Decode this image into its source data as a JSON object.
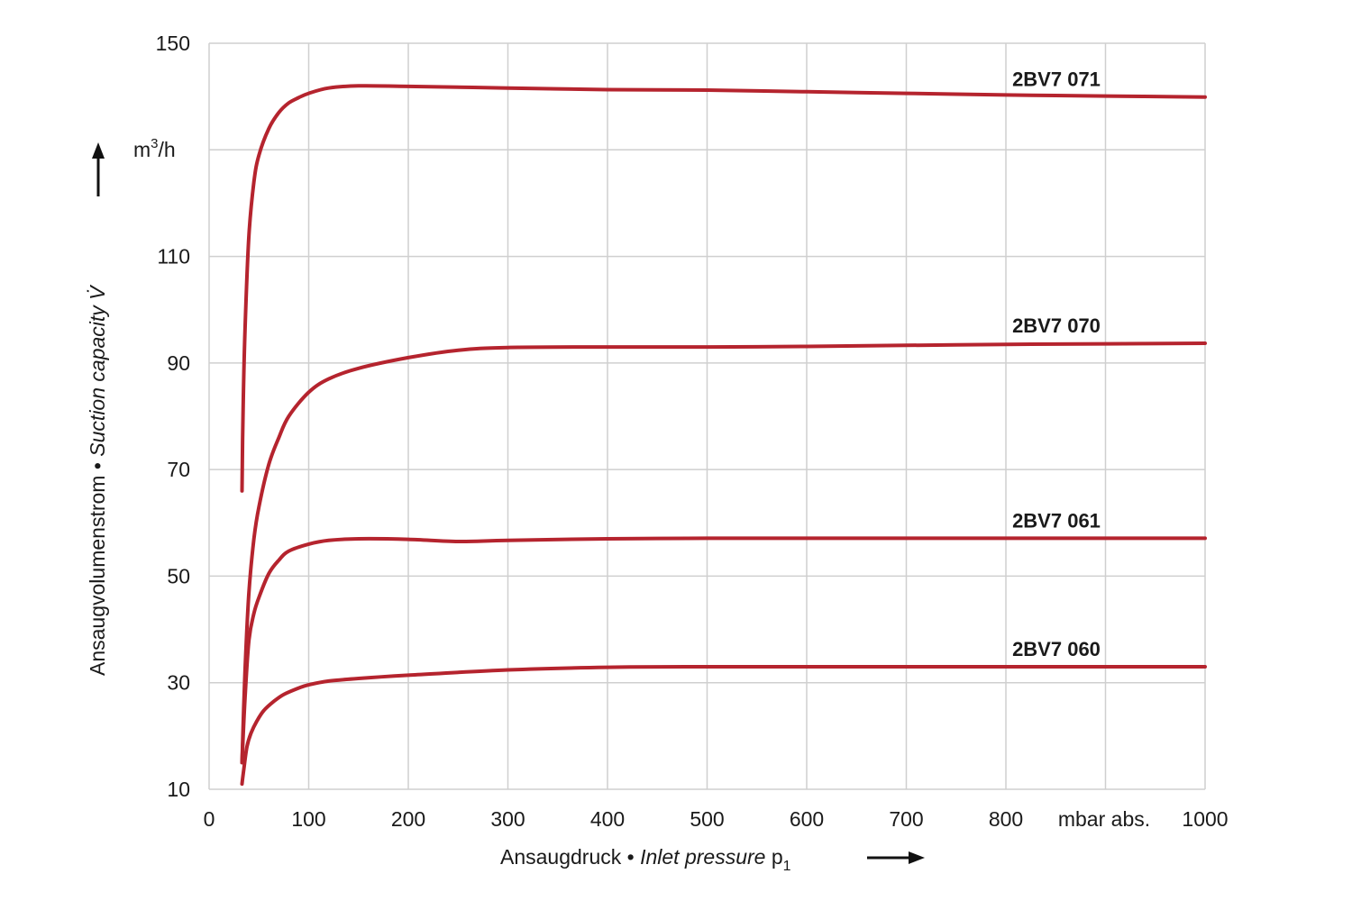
{
  "chart_data": {
    "type": "line",
    "x_unit": "mbar abs.",
    "y_unit_base": "m",
    "y_unit_exp": "3",
    "y_unit_tail": "/h",
    "xlim": [
      0,
      1000
    ],
    "ylim": [
      10,
      150
    ],
    "x_ticks": [
      0,
      100,
      200,
      300,
      400,
      500,
      600,
      700,
      800,
      1000
    ],
    "x_grid": [
      0,
      100,
      200,
      300,
      400,
      500,
      600,
      700,
      800,
      900,
      1000
    ],
    "y_ticks": [
      10,
      30,
      50,
      70,
      90,
      110,
      150
    ],
    "y_grid": [
      10,
      30,
      50,
      70,
      90,
      110,
      130,
      150
    ],
    "grid": true,
    "line_color": "#b5242e",
    "xlabel": {
      "de": "Ansaugdruck",
      "sep": " • ",
      "en": "Inlet pressure",
      "sym": " p",
      "sub": "1"
    },
    "ylabel": {
      "de": "Ansaugvolumenstrom",
      "sep": " • ",
      "en": "Suction capacity",
      "sym": " V̇"
    },
    "series": [
      {
        "name": "2BV7 071",
        "x": [
          33,
          34,
          36,
          40,
          45,
          50,
          60,
          70,
          80,
          90,
          100,
          120,
          150,
          200,
          300,
          400,
          500,
          600,
          700,
          800,
          900,
          1000
        ],
        "y": [
          66,
          80,
          96,
          114,
          124,
          129,
          134,
          137,
          138.8,
          139.8,
          140.6,
          141.6,
          142,
          141.9,
          141.6,
          141.3,
          141.2,
          140.9,
          140.6,
          140.3,
          140.1,
          139.9
        ]
      },
      {
        "name": "2BV7 070",
        "x": [
          33,
          36,
          40,
          45,
          50,
          60,
          70,
          80,
          100,
          120,
          150,
          200,
          250,
          300,
          400,
          500,
          600,
          700,
          800,
          900,
          1000
        ],
        "y": [
          15,
          32,
          47,
          57,
          63,
          71,
          76,
          80,
          84.5,
          87,
          89,
          91,
          92.4,
          92.9,
          93,
          93,
          93.1,
          93.3,
          93.5,
          93.6,
          93.7
        ]
      },
      {
        "name": "2BV7 061",
        "x": [
          33,
          36,
          40,
          45,
          50,
          60,
          70,
          80,
          100,
          120,
          150,
          200,
          250,
          300,
          400,
          500,
          600,
          700,
          800,
          900,
          1000
        ],
        "y": [
          15,
          27,
          38,
          43,
          46,
          50.5,
          53,
          54.7,
          56,
          56.7,
          57,
          56.9,
          56.5,
          56.7,
          57,
          57.1,
          57.1,
          57.1,
          57.1,
          57.1,
          57.1
        ]
      },
      {
        "name": "2BV7 060",
        "x": [
          33,
          35,
          38,
          42,
          48,
          55,
          65,
          75,
          90,
          100,
          120,
          150,
          200,
          300,
          400,
          500,
          600,
          700,
          800,
          900,
          1000
        ],
        "y": [
          11,
          14,
          18,
          20.5,
          22.8,
          24.8,
          26.5,
          27.8,
          29,
          29.6,
          30.3,
          30.8,
          31.4,
          32.4,
          32.9,
          33,
          33,
          33,
          33,
          33,
          33
        ]
      }
    ]
  }
}
